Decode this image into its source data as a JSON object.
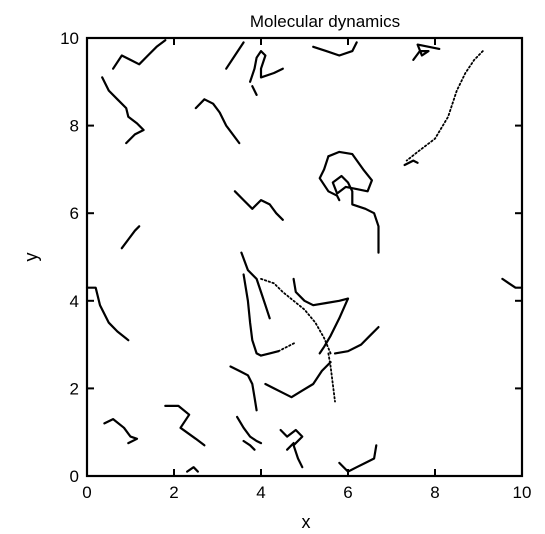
{
  "chart_data": {
    "type": "line",
    "title": "Molecular dynamics",
    "xlabel": "x",
    "ylabel": "y",
    "xlim": [
      0,
      10
    ],
    "ylim": [
      0,
      10
    ],
    "xticks": [
      0,
      2,
      4,
      6,
      8,
      10
    ],
    "yticks": [
      0,
      2,
      4,
      6,
      8,
      10
    ],
    "grid": false,
    "series": [
      {
        "style": "solid",
        "points": [
          [
            0.6,
            9.3
          ],
          [
            0.8,
            9.6
          ],
          [
            1.0,
            9.5
          ],
          [
            1.2,
            9.4
          ],
          [
            1.4,
            9.6
          ],
          [
            1.6,
            9.8
          ],
          [
            1.8,
            9.95
          ]
        ]
      },
      {
        "style": "solid",
        "points": [
          [
            0.35,
            9.1
          ],
          [
            0.5,
            8.8
          ],
          [
            0.7,
            8.6
          ],
          [
            0.9,
            8.4
          ],
          [
            0.95,
            8.2
          ],
          [
            1.15,
            8.05
          ],
          [
            1.3,
            7.9
          ],
          [
            1.1,
            7.8
          ],
          [
            0.9,
            7.6
          ]
        ]
      },
      {
        "style": "solid",
        "points": [
          [
            0.8,
            5.2
          ],
          [
            0.95,
            5.4
          ],
          [
            1.1,
            5.6
          ],
          [
            1.2,
            5.7
          ]
        ]
      },
      {
        "style": "solid",
        "points": [
          [
            0.0,
            4.3
          ],
          [
            0.2,
            4.3
          ],
          [
            0.3,
            3.9
          ],
          [
            0.5,
            3.5
          ],
          [
            0.7,
            3.3
          ],
          [
            0.95,
            3.1
          ]
        ]
      },
      {
        "style": "solid",
        "points": [
          [
            0.4,
            1.2
          ],
          [
            0.6,
            1.3
          ],
          [
            0.85,
            1.1
          ],
          [
            1.0,
            0.9
          ],
          [
            1.15,
            0.85
          ],
          [
            0.95,
            0.75
          ]
        ]
      },
      {
        "style": "solid",
        "points": [
          [
            1.8,
            1.6
          ],
          [
            2.1,
            1.6
          ],
          [
            2.35,
            1.4
          ],
          [
            2.15,
            1.1
          ],
          [
            2.5,
            0.85
          ],
          [
            2.7,
            0.7
          ]
        ]
      },
      {
        "style": "solid",
        "points": [
          [
            2.3,
            0.1
          ],
          [
            2.45,
            0.2
          ],
          [
            2.55,
            0.1
          ]
        ]
      },
      {
        "style": "solid",
        "points": [
          [
            2.5,
            8.4
          ],
          [
            2.7,
            8.6
          ],
          [
            2.9,
            8.5
          ],
          [
            3.05,
            8.3
          ],
          [
            3.2,
            8.0
          ],
          [
            3.5,
            7.6
          ]
        ]
      },
      {
        "style": "solid",
        "points": [
          [
            3.2,
            9.3
          ],
          [
            3.4,
            9.6
          ],
          [
            3.6,
            9.9
          ]
        ]
      },
      {
        "style": "solid",
        "points": [
          [
            3.75,
            9.0
          ],
          [
            3.85,
            9.3
          ],
          [
            3.9,
            9.55
          ],
          [
            4.0,
            9.7
          ],
          [
            4.1,
            9.6
          ],
          [
            4.0,
            9.3
          ],
          [
            4.0,
            9.1
          ],
          [
            4.3,
            9.2
          ],
          [
            4.5,
            9.3
          ]
        ]
      },
      {
        "style": "solid",
        "points": [
          [
            3.8,
            8.9
          ],
          [
            3.9,
            8.7
          ]
        ]
      },
      {
        "style": "solid",
        "points": [
          [
            3.4,
            6.5
          ],
          [
            3.6,
            6.3
          ],
          [
            3.8,
            6.1
          ],
          [
            4.0,
            6.3
          ],
          [
            4.2,
            6.2
          ],
          [
            4.35,
            6.0
          ],
          [
            4.5,
            5.85
          ]
        ]
      },
      {
        "style": "solid",
        "points": [
          [
            3.55,
            5.1
          ],
          [
            3.7,
            4.7
          ],
          [
            3.9,
            4.5
          ],
          [
            4.0,
            4.2
          ],
          [
            4.1,
            3.9
          ],
          [
            4.2,
            3.6
          ]
        ]
      },
      {
        "style": "solid",
        "points": [
          [
            3.6,
            4.6
          ],
          [
            3.7,
            4.0
          ],
          [
            3.75,
            3.5
          ],
          [
            3.8,
            3.1
          ],
          [
            3.9,
            2.8
          ],
          [
            4.0,
            2.75
          ],
          [
            4.2,
            2.8
          ],
          [
            4.4,
            2.85
          ]
        ]
      },
      {
        "style": "dotted",
        "points": [
          [
            4.4,
            2.85
          ],
          [
            4.6,
            2.95
          ],
          [
            4.8,
            3.05
          ]
        ]
      },
      {
        "style": "dotted",
        "points": [
          [
            4.0,
            4.5
          ],
          [
            4.3,
            4.4
          ],
          [
            4.5,
            4.2
          ],
          [
            4.75,
            4.0
          ],
          [
            5.0,
            3.8
          ],
          [
            5.25,
            3.5
          ],
          [
            5.45,
            3.15
          ],
          [
            5.6,
            2.8
          ]
        ]
      },
      {
        "style": "solid",
        "points": [
          [
            4.75,
            4.5
          ],
          [
            4.8,
            4.2
          ],
          [
            5.0,
            4.0
          ],
          [
            5.2,
            3.9
          ],
          [
            5.5,
            3.95
          ],
          [
            5.8,
            4.0
          ],
          [
            6.0,
            4.05
          ]
        ]
      },
      {
        "style": "solid",
        "points": [
          [
            6.0,
            4.05
          ],
          [
            5.8,
            3.6
          ],
          [
            5.6,
            3.2
          ],
          [
            5.45,
            2.95
          ],
          [
            5.35,
            2.8
          ]
        ]
      },
      {
        "style": "solid",
        "points": [
          [
            5.7,
            2.8
          ],
          [
            6.0,
            2.85
          ],
          [
            6.3,
            3.0
          ],
          [
            6.5,
            3.2
          ],
          [
            6.7,
            3.4
          ]
        ]
      },
      {
        "style": "dotted",
        "points": [
          [
            5.55,
            2.8
          ],
          [
            5.6,
            2.5
          ],
          [
            5.65,
            2.1
          ],
          [
            5.7,
            1.7
          ]
        ]
      },
      {
        "style": "solid",
        "points": [
          [
            3.3,
            2.5
          ],
          [
            3.5,
            2.4
          ],
          [
            3.7,
            2.3
          ],
          [
            3.8,
            2.1
          ],
          [
            3.85,
            1.8
          ],
          [
            3.9,
            1.5
          ]
        ]
      },
      {
        "style": "solid",
        "points": [
          [
            4.1,
            2.1
          ],
          [
            4.3,
            2.0
          ],
          [
            4.5,
            1.9
          ],
          [
            4.7,
            1.8
          ],
          [
            4.95,
            1.95
          ],
          [
            5.2,
            2.1
          ],
          [
            5.4,
            2.4
          ],
          [
            5.6,
            2.6
          ]
        ]
      },
      {
        "style": "solid",
        "points": [
          [
            3.45,
            1.35
          ],
          [
            3.6,
            1.1
          ],
          [
            3.75,
            0.9
          ],
          [
            3.9,
            0.8
          ],
          [
            4.0,
            0.75
          ]
        ]
      },
      {
        "style": "solid",
        "points": [
          [
            3.6,
            0.8
          ],
          [
            3.75,
            0.7
          ],
          [
            3.85,
            0.6
          ]
        ]
      },
      {
        "style": "solid",
        "points": [
          [
            4.45,
            1.05
          ],
          [
            4.6,
            0.9
          ],
          [
            4.8,
            1.05
          ],
          [
            4.95,
            0.9
          ],
          [
            4.75,
            0.7
          ],
          [
            4.85,
            0.4
          ],
          [
            4.95,
            0.2
          ]
        ]
      },
      {
        "style": "solid",
        "points": [
          [
            4.6,
            0.6
          ],
          [
            4.75,
            0.75
          ]
        ]
      },
      {
        "style": "solid",
        "points": [
          [
            5.2,
            9.8
          ],
          [
            5.5,
            9.7
          ],
          [
            5.8,
            9.6
          ],
          [
            6.1,
            9.7
          ],
          [
            6.2,
            9.9
          ]
        ]
      },
      {
        "style": "solid",
        "points": [
          [
            5.55,
            7.3
          ],
          [
            5.8,
            7.4
          ],
          [
            6.1,
            7.35
          ],
          [
            6.35,
            7.0
          ],
          [
            6.55,
            6.75
          ],
          [
            6.45,
            6.5
          ],
          [
            6.2,
            6.55
          ],
          [
            5.95,
            6.6
          ],
          [
            5.75,
            6.45
          ],
          [
            5.65,
            6.7
          ],
          [
            5.85,
            6.85
          ],
          [
            6.0,
            6.7
          ],
          [
            6.1,
            6.5
          ],
          [
            6.1,
            6.2
          ],
          [
            6.4,
            6.1
          ],
          [
            6.6,
            6.0
          ],
          [
            6.7,
            5.7
          ],
          [
            6.7,
            5.1
          ]
        ]
      },
      {
        "style": "solid",
        "points": [
          [
            5.55,
            7.3
          ],
          [
            5.45,
            7.0
          ],
          [
            5.35,
            6.8
          ],
          [
            5.55,
            6.5
          ],
          [
            5.75,
            6.4
          ],
          [
            5.8,
            6.3
          ]
        ]
      },
      {
        "style": "solid",
        "points": [
          [
            5.8,
            0.3
          ],
          [
            6.0,
            0.1
          ],
          [
            6.2,
            0.2
          ],
          [
            6.4,
            0.3
          ],
          [
            6.6,
            0.4
          ],
          [
            6.65,
            0.7
          ]
        ]
      },
      {
        "style": "solid",
        "points": [
          [
            7.5,
            9.5
          ],
          [
            7.65,
            9.7
          ],
          [
            7.85,
            9.7
          ],
          [
            7.7,
            9.6
          ],
          [
            7.6,
            9.85
          ],
          [
            8.1,
            9.75
          ]
        ]
      },
      {
        "style": "dotted",
        "points": [
          [
            9.1,
            9.7
          ],
          [
            8.9,
            9.5
          ],
          [
            8.7,
            9.2
          ],
          [
            8.5,
            8.8
          ],
          [
            8.3,
            8.2
          ],
          [
            8.0,
            7.7
          ],
          [
            7.6,
            7.4
          ],
          [
            7.35,
            7.2
          ]
        ]
      },
      {
        "style": "solid",
        "points": [
          [
            7.3,
            7.1
          ],
          [
            7.5,
            7.2
          ],
          [
            7.6,
            7.15
          ]
        ]
      },
      {
        "style": "solid",
        "points": [
          [
            9.55,
            4.5
          ],
          [
            9.7,
            4.4
          ],
          [
            9.85,
            4.3
          ],
          [
            10.0,
            4.3
          ]
        ]
      }
    ]
  }
}
